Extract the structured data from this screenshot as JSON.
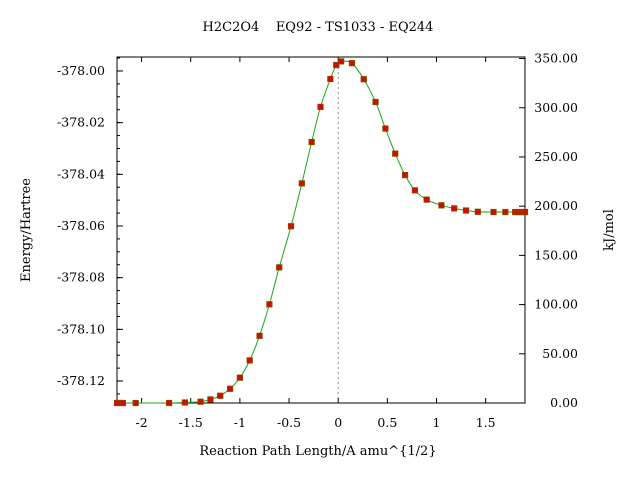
{
  "chart_data": {
    "type": "line",
    "title": "H2C2O4    EQ92 - TS1033 - EQ244",
    "xlabel": "Reaction Path Length/A amu^{1/2}",
    "ylabel": "Energy/Hartree",
    "y2label": "kJ/mol",
    "xlim": [
      -2.25,
      1.9
    ],
    "ylim": [
      -378.1285,
      -377.9946
    ],
    "y2lim": [
      0.0,
      351.57
    ],
    "x_ticks": [
      -2,
      -1.5,
      -1,
      -0.5,
      0,
      0.5,
      1,
      1.5
    ],
    "x_tick_labels": [
      "-2",
      "-1.5",
      "-1",
      "-0.5",
      "0",
      "0.5",
      "1",
      "1.5"
    ],
    "y_ticks": [
      -378.12,
      -378.1,
      -378.08,
      -378.06,
      -378.04,
      -378.02,
      -378.0
    ],
    "y_tick_labels": [
      "-378.12",
      "-378.10",
      "-378.08",
      "-378.06",
      "-378.04",
      "-378.02",
      "-378.00"
    ],
    "y2_ticks": [
      0,
      50,
      100,
      150,
      200,
      250,
      300,
      350
    ],
    "y2_tick_labels": [
      "0.00",
      "50.00",
      "100.00",
      "150.00",
      "200.00",
      "250.00",
      "300.00",
      "350.00"
    ],
    "ts_x": 0,
    "grid": false,
    "colors": {
      "curve": "#1aa51a",
      "points": "#cc1100",
      "ts_line": "#888888"
    },
    "series": [
      {
        "x": [
          -2.25,
          -2.22,
          -2.19,
          -2.06,
          -1.72,
          -1.56,
          -1.4,
          -1.3,
          -1.2,
          -1.1,
          -1.0,
          -0.9,
          -0.8,
          -0.7,
          -0.6,
          -0.48,
          -0.37,
          -0.27,
          -0.18,
          -0.08,
          -0.02,
          0.03,
          0.14,
          0.26,
          0.38,
          0.48,
          0.58,
          0.68,
          0.78,
          0.9,
          1.05,
          1.18,
          1.3,
          1.42,
          1.58,
          1.7,
          1.8,
          1.83,
          1.86,
          1.89,
          1.9
        ],
        "y": [
          -378.1285,
          -378.1285,
          -378.1285,
          -378.1285,
          -378.1285,
          -378.1283,
          -378.128,
          -378.1271,
          -378.1257,
          -378.123,
          -378.1187,
          -378.112,
          -378.1025,
          -378.0903,
          -378.076,
          -378.0601,
          -378.0435,
          -378.0275,
          -378.0139,
          -378.0031,
          -377.9977,
          -377.9963,
          -377.997,
          -378.0032,
          -378.012,
          -378.0223,
          -378.032,
          -378.0403,
          -378.0462,
          -378.0498,
          -378.052,
          -378.0532,
          -378.054,
          -378.0545,
          -378.0546,
          -378.0546,
          -378.0546,
          -378.0546,
          -378.0546,
          -378.0546,
          -378.0546
        ]
      }
    ]
  }
}
